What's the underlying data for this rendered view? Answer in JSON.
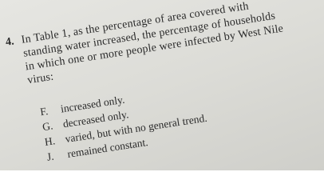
{
  "question": {
    "number": "4.",
    "lines": [
      "In Table 1, as the percentage of area covered with",
      "standing water increased, the percentage of households",
      "in which one or more people were infected by West Nile",
      "virus:"
    ]
  },
  "options": [
    {
      "letter": "F.",
      "text": "increased only."
    },
    {
      "letter": "G.",
      "text": "decreased only."
    },
    {
      "letter": "H.",
      "text": "varied, but with no general trend."
    },
    {
      "letter": "J.",
      "text": "remained constant."
    }
  ]
}
